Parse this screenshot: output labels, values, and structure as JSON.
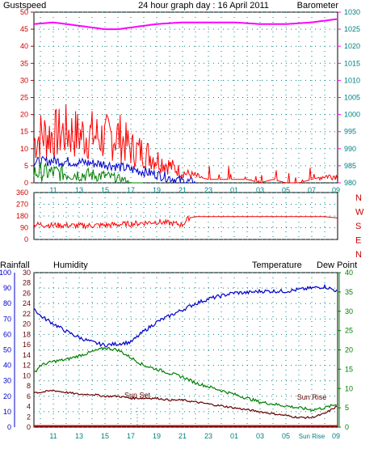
{
  "header": {
    "title": "24 hour graph day : 16 April 2011",
    "left_label": "Gustspeed",
    "right_label": "Barometer"
  },
  "lower_header": {
    "rainfall": "Rainfall",
    "humidity": "Humidity",
    "temperature": "Temperature",
    "dewpoint": "Dew Point"
  },
  "wind_dir_letters": [
    "N",
    "W",
    "S",
    "E",
    "N"
  ],
  "x_ticks": [
    "11",
    "13",
    "15",
    "17",
    "19",
    "21",
    "23",
    "01",
    "03",
    "05",
    "07",
    "09"
  ],
  "x_ticks_bottom": [
    "11",
    "13",
    "15",
    "17",
    "19",
    "21",
    "23",
    "01",
    "03",
    "05",
    "Sun Rise",
    "09"
  ],
  "annotations": {
    "sun_set": "Sun Set",
    "sun_rise": "Sun Rise"
  },
  "colors": {
    "gust": "#ff0000",
    "wind_avg": "#0000cc",
    "wind_low": "#008000",
    "barometer": "#ff00ff",
    "direction": "#ff0000",
    "humidity": "#0000cc",
    "temperature": "#008000",
    "dewpoint": "#660000",
    "rain": "#cc0000",
    "axis_left": "#cc0000",
    "axis_right": "#008080",
    "grid": "#008080",
    "title": "#0000cc"
  },
  "chart_data": [
    {
      "type": "line",
      "title": "24 hour graph day : 16 April 2011",
      "x_hours": [
        9,
        33
      ],
      "y_left": {
        "label": "Gustspeed",
        "ticks": [
          0,
          5,
          10,
          15,
          20,
          25,
          30,
          35,
          40,
          45,
          50
        ],
        "lim": [
          0,
          50
        ]
      },
      "y_right": {
        "label": "Barometer",
        "ticks": [
          980,
          985,
          990,
          995,
          1000,
          1005,
          1010,
          1015,
          1020,
          1025,
          1030
        ],
        "lim": [
          980,
          1030
        ]
      },
      "series": [
        {
          "name": "Gustspeed",
          "axis": "left",
          "x": [
            9.5,
            10,
            11,
            12,
            13,
            14,
            15,
            16,
            17,
            18,
            19,
            20,
            21,
            22,
            23,
            24,
            25,
            26,
            27,
            28,
            29,
            30,
            31,
            32,
            33
          ],
          "y": [
            12,
            14,
            14,
            15,
            14,
            14,
            13,
            14,
            10,
            9,
            7,
            5,
            3,
            2,
            1,
            1,
            1,
            1,
            0,
            1,
            0,
            0,
            1,
            2,
            2
          ]
        },
        {
          "name": "Barometer",
          "axis": "right",
          "x": [
            9.5,
            11,
            13,
            15,
            16,
            17,
            19,
            21,
            23,
            25,
            27,
            29,
            31,
            33
          ],
          "y": [
            1026.5,
            1027,
            1026,
            1025,
            1025,
            1025.5,
            1026.5,
            1027,
            1027,
            1027,
            1026.5,
            1026.5,
            1027,
            1028
          ]
        }
      ],
      "extra_series": [
        {
          "x": [
            9.5,
            11,
            13,
            15,
            17,
            19,
            20,
            21,
            22
          ],
          "y": [
            6,
            6.5,
            6,
            5.5,
            4,
            2.5,
            1.5,
            0.5,
            0
          ]
        },
        {
          "x": [
            9.5,
            11,
            13,
            15,
            16.5,
            17,
            18
          ],
          "y": [
            3,
            3,
            2.5,
            2,
            1,
            0,
            0
          ]
        }
      ]
    },
    {
      "type": "line",
      "y_left": {
        "ticks": [
          0,
          90,
          180,
          270,
          360
        ],
        "lim": [
          0,
          360
        ]
      },
      "series": [
        {
          "name": "Wind direction",
          "x": [
            9.5,
            11,
            13,
            15,
            17,
            19,
            21,
            21.5,
            22,
            30,
            32,
            33
          ],
          "y": [
            115,
            110,
            105,
            110,
            120,
            135,
            115,
            165,
            175,
            175,
            175,
            165
          ]
        }
      ]
    },
    {
      "type": "line",
      "x_hours": [
        9,
        33
      ],
      "axes": {
        "rainfall_ticks": [
          0,
          10,
          20,
          30,
          40,
          50,
          60,
          70,
          80,
          90,
          100
        ],
        "humidity_ticks": [
          0,
          2,
          4,
          6,
          8,
          10,
          12,
          14,
          16,
          18,
          20,
          22,
          24,
          26,
          28,
          30
        ],
        "right_ticks": [
          0,
          5,
          10,
          15,
          20,
          25,
          30,
          35,
          40
        ]
      },
      "series": [
        {
          "name": "Humidity",
          "scale": "pct",
          "x": [
            9.5,
            10,
            11,
            12,
            13,
            14,
            15,
            16,
            17,
            18,
            19,
            20,
            21,
            22,
            23,
            24,
            25,
            26,
            27,
            28,
            29,
            30,
            31,
            32,
            33
          ],
          "y": [
            77,
            72,
            67,
            62,
            58,
            55,
            53,
            54,
            55,
            62,
            68,
            72,
            76,
            80,
            83,
            85,
            87,
            87,
            88,
            88,
            88,
            89,
            90,
            91,
            88
          ]
        },
        {
          "name": "Temperature",
          "scale": "right",
          "x": [
            9.5,
            10,
            11,
            12,
            13,
            14,
            15,
            16,
            17,
            18,
            19,
            20,
            21,
            22,
            23,
            24,
            25,
            26,
            27,
            28,
            29,
            30,
            31,
            32,
            33
          ],
          "y": [
            14,
            16,
            17,
            17.5,
            18.5,
            19.5,
            20.5,
            20,
            18,
            16,
            15,
            14,
            13,
            11.5,
            10.5,
            9.5,
            8.5,
            7.5,
            6.5,
            6,
            5.5,
            5,
            4.5,
            5,
            6
          ]
        },
        {
          "name": "Dew Point",
          "scale": "right",
          "x": [
            9.5,
            10,
            11,
            12,
            13,
            14,
            15,
            16,
            17,
            18,
            19,
            20,
            21,
            22,
            23,
            24,
            25,
            26,
            27,
            28,
            29,
            30,
            31,
            32,
            33
          ],
          "y": [
            9,
            9,
            9.5,
            9,
            8.5,
            8.5,
            8,
            8,
            7.5,
            7.5,
            7.5,
            7,
            7,
            6.5,
            6,
            5.5,
            5,
            4.5,
            4,
            3.5,
            3,
            2.5,
            2.5,
            3.5,
            5.5
          ]
        },
        {
          "name": "Rainfall",
          "scale": "pct",
          "x": [
            9,
            33
          ],
          "y": [
            0,
            0
          ]
        }
      ]
    }
  ]
}
